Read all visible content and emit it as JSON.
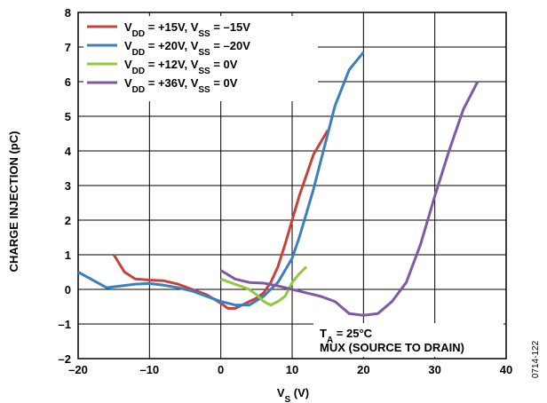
{
  "chart_data": {
    "type": "line",
    "xlabel": {
      "main": "V",
      "sub": "S",
      "unit": " (V)"
    },
    "ylabel": "CHARGE INJECTION (pC)",
    "xlim": [
      -20,
      40
    ],
    "ylim": [
      -2,
      8
    ],
    "xticks": [
      -20,
      -10,
      0,
      10,
      20,
      30,
      40
    ],
    "xtick_labels": [
      "–20",
      "–10",
      "0",
      "10",
      "20",
      "30",
      "40"
    ],
    "yticks": [
      -2,
      -1,
      0,
      1,
      2,
      3,
      4,
      5,
      6,
      7,
      8
    ],
    "ytick_labels": [
      "–2",
      "–1",
      "0",
      "1",
      "2",
      "3",
      "4",
      "5",
      "6",
      "7",
      "8"
    ],
    "grid": true,
    "legend_position": "top-left",
    "series": [
      {
        "legend": {
          "parts": [
            [
              "V",
              "DD",
              " = +15V, "
            ],
            [
              "V",
              "SS",
              " = –15V"
            ]
          ]
        },
        "color": "#c8423c",
        "x": [
          -15,
          -13.5,
          -12,
          -10,
          -8,
          -6,
          -4,
          -2,
          0,
          1,
          2,
          3,
          4,
          5,
          6,
          7,
          8,
          9,
          10,
          11,
          12,
          13,
          15
        ],
        "y": [
          1.0,
          0.5,
          0.3,
          0.27,
          0.25,
          0.15,
          0.0,
          -0.15,
          -0.4,
          -0.55,
          -0.55,
          -0.45,
          -0.35,
          -0.25,
          -0.1,
          0.2,
          0.65,
          1.3,
          2.0,
          2.7,
          3.3,
          3.9,
          4.6
        ]
      },
      {
        "legend": {
          "parts": [
            [
              "V",
              "DD",
              " = +20V, "
            ],
            [
              "V",
              "SS",
              " = –20V"
            ]
          ]
        },
        "color": "#3a7fc1",
        "x": [
          -20,
          -16,
          -14,
          -12,
          -10,
          -8,
          -6,
          -4,
          -2,
          0,
          2,
          4,
          6,
          8,
          9,
          10,
          11,
          12,
          13,
          14,
          15,
          16,
          18,
          20
        ],
        "y": [
          0.5,
          0.05,
          0.1,
          0.15,
          0.17,
          0.12,
          0.05,
          -0.05,
          -0.2,
          -0.35,
          -0.45,
          -0.45,
          -0.2,
          0.2,
          0.55,
          0.9,
          1.5,
          2.2,
          2.9,
          3.7,
          4.5,
          5.3,
          6.35,
          6.85
        ]
      },
      {
        "legend": {
          "parts": [
            [
              "V",
              "DD",
              " = +12V, "
            ],
            [
              "V",
              "SS",
              " = 0V"
            ]
          ]
        },
        "color": "#92c83e",
        "x": [
          0,
          2,
          4,
          5,
          6,
          7,
          8,
          9,
          10,
          11,
          12
        ],
        "y": [
          0.3,
          0.15,
          0.0,
          -0.15,
          -0.35,
          -0.45,
          -0.35,
          -0.2,
          0.2,
          0.45,
          0.65
        ]
      },
      {
        "legend": {
          "parts": [
            [
              "V",
              "DD",
              " = +36V, "
            ],
            [
              "V",
              "SS",
              " = 0V"
            ]
          ]
        },
        "color": "#7e5aa6",
        "x": [
          0,
          2,
          4,
          6,
          8,
          10,
          12,
          14,
          16,
          18,
          20,
          22,
          24,
          26,
          28,
          30,
          32,
          34,
          36
        ],
        "y": [
          0.55,
          0.3,
          0.2,
          0.18,
          0.1,
          0.0,
          -0.1,
          -0.2,
          -0.35,
          -0.7,
          -0.75,
          -0.7,
          -0.35,
          0.2,
          1.3,
          2.7,
          4.0,
          5.2,
          6.0
        ]
      }
    ],
    "annotations": [
      {
        "parts": [
          [
            "T",
            "A",
            " = 25°C"
          ]
        ]
      },
      {
        "text": "MUX (SOURCE TO DRAIN)"
      }
    ],
    "figure_code": "0714-122"
  }
}
